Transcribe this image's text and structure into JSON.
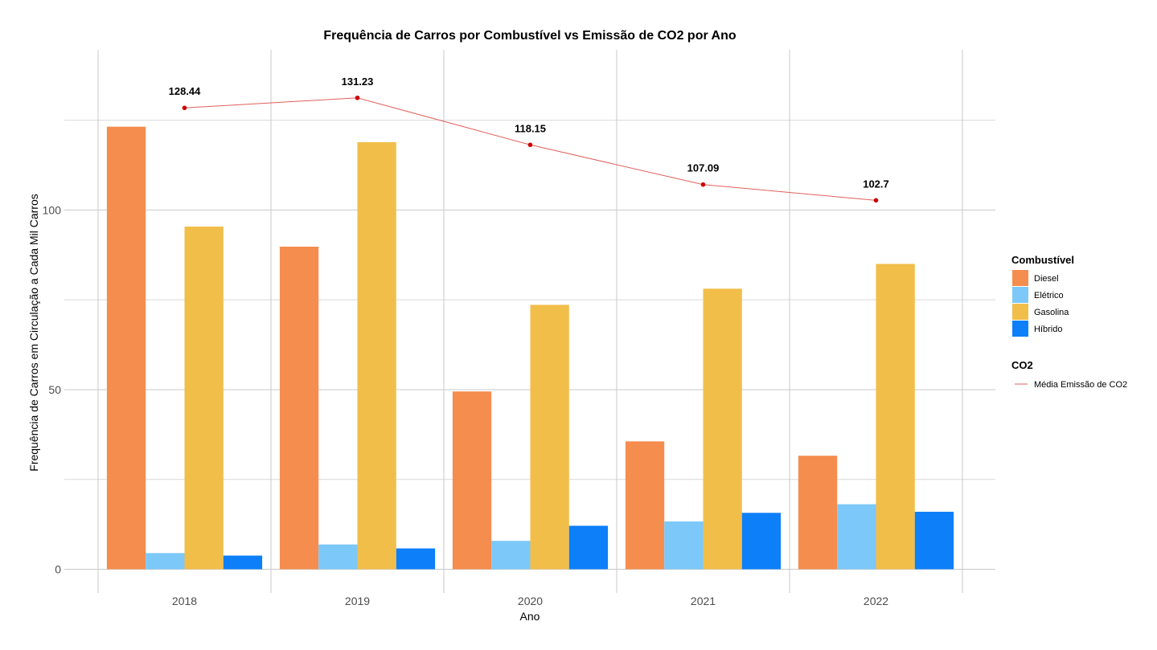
{
  "chart_data": {
    "type": "bar",
    "title": "Frequência de Carros por Combustível vs Emissão de CO2 por Ano",
    "xlabel": "Ano",
    "ylabel": "Frequência de Carros em Circulação a Cada Mil Carros",
    "categories": [
      "2018",
      "2019",
      "2020",
      "2021",
      "2022"
    ],
    "ylim": [
      -6.6,
      144.6
    ],
    "yticks": [
      0,
      50,
      100
    ],
    "grid": true,
    "series": [
      {
        "name": "Diesel",
        "color": "#F58D4E",
        "values": [
          123.2,
          89.8,
          49.5,
          35.6,
          31.6
        ]
      },
      {
        "name": "Elétrico",
        "color": "#7CC8F8",
        "values": [
          4.5,
          6.9,
          7.9,
          13.3,
          18.1
        ]
      },
      {
        "name": "Gasolina",
        "color": "#F2BE4A",
        "values": [
          95.4,
          118.9,
          73.6,
          78.1,
          85.0
        ]
      },
      {
        "name": "Híbrido",
        "color": "#0D7FF8",
        "values": [
          3.8,
          5.8,
          12.1,
          15.7,
          16.0
        ]
      }
    ],
    "line": {
      "name": "Média Emissão de CO2",
      "color": "#E0605B",
      "point_color": "#CC0000",
      "values": [
        128.44,
        131.23,
        118.15,
        107.09,
        102.7
      ],
      "labels": [
        "128.44",
        "131.23",
        "118.15",
        "107.09",
        "102.7"
      ]
    },
    "legend": {
      "position": "right",
      "fill_title": "Combustível",
      "line_title": "CO2"
    }
  }
}
